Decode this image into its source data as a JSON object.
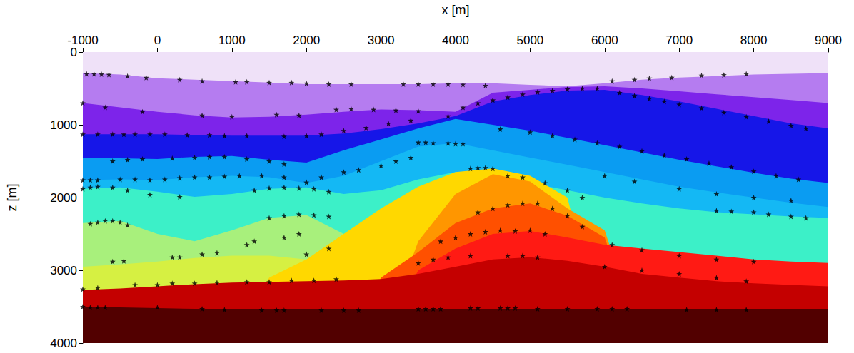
{
  "chart_data": {
    "type": "area",
    "x_label": "x [m]",
    "y_label": "z [m]",
    "xlim": [
      -1000,
      9000
    ],
    "ylim": [
      4000,
      0
    ],
    "xticks": [
      -1000,
      0,
      1000,
      2000,
      3000,
      4000,
      5000,
      6000,
      7000,
      8000,
      9000
    ],
    "yticks": [
      0,
      1000,
      2000,
      3000,
      4000
    ],
    "grid": false,
    "x": [
      -1000,
      -500,
      0,
      500,
      1000,
      1500,
      2000,
      2500,
      3000,
      3500,
      4000,
      4500,
      5000,
      5500,
      6000,
      6500,
      7000,
      7500,
      8000,
      8500,
      9000
    ],
    "series": [
      {
        "color": "#efe1f8",
        "values": [
          0,
          0,
          0,
          0,
          0,
          0,
          0,
          0,
          0,
          0,
          0,
          0,
          0,
          0,
          0,
          0,
          0,
          0,
          0,
          0,
          0
        ]
      },
      {
        "color": "#b57cf0",
        "values": [
          290,
          310,
          360,
          380,
          400,
          420,
          440,
          440,
          440,
          440,
          430,
          430,
          450,
          470,
          430,
          380,
          350,
          330,
          310,
          300,
          290
        ]
      },
      {
        "color": "#7d24ea",
        "values": [
          700,
          760,
          820,
          870,
          900,
          890,
          860,
          820,
          790,
          800,
          820,
          560,
          520,
          480,
          470,
          500,
          540,
          580,
          620,
          660,
          700
        ]
      },
      {
        "color": "#1616e8",
        "values": [
          1130,
          1130,
          1130,
          1140,
          1150,
          1150,
          1150,
          1120,
          1060,
          980,
          880,
          680,
          590,
          530,
          520,
          590,
          680,
          780,
          880,
          980,
          1050
        ]
      },
      {
        "color": "#0a9cf2",
        "values": [
          1450,
          1460,
          1470,
          1440,
          1430,
          1480,
          1520,
          1350,
          1200,
          1050,
          920,
          1000,
          1080,
          1180,
          1280,
          1380,
          1480,
          1570,
          1660,
          1740,
          1800
        ]
      },
      {
        "color": "#14b8f4",
        "values": [
          1760,
          1750,
          1760,
          1720,
          1700,
          1720,
          1800,
          1700,
          1500,
          1300,
          1250,
          1350,
          1450,
          1550,
          1650,
          1750,
          1850,
          1930,
          2000,
          2070,
          2130
        ]
      },
      {
        "color": "#3cf0c8",
        "values": [
          1880,
          1860,
          1920,
          1990,
          1950,
          1880,
          1860,
          1950,
          1900,
          1750,
          1650,
          1700,
          1800,
          1900,
          2000,
          2080,
          2150,
          2200,
          2230,
          2260,
          2280
        ]
      },
      {
        "color": "#a8f07c",
        "values": [
          2350,
          2320,
          2500,
          2600,
          2450,
          2280,
          2240,
          2500,
          2700,
          2900,
          3000,
          4000,
          4000,
          4000,
          4000,
          4000,
          4000,
          4000,
          4000,
          4000,
          4000
        ]
      },
      {
        "color": "#d6f042",
        "values": [
          2950,
          2920,
          2880,
          2830,
          2800,
          2800,
          2850,
          2950,
          3000,
          3100,
          4000,
          4000,
          4000,
          4000,
          4000,
          4000,
          4000,
          4000,
          4000,
          4000,
          4000
        ]
      },
      {
        "color": "#ffd800",
        "values": [
          4000,
          4000,
          4000,
          4000,
          4000,
          3100,
          2850,
          2500,
          2150,
          1850,
          1650,
          1600,
          1700,
          2000,
          4000,
          4000,
          4000,
          4000,
          4000,
          4000,
          4000
        ]
      },
      {
        "color": "#ff9600",
        "values": [
          4000,
          4000,
          4000,
          4000,
          4000,
          4000,
          4000,
          4000,
          4000,
          2600,
          1950,
          1680,
          1780,
          2150,
          2450,
          4000,
          4000,
          4000,
          4000,
          4000,
          4000
        ]
      },
      {
        "color": "#ff5000",
        "values": [
          4000,
          4000,
          4000,
          4000,
          4000,
          4000,
          4000,
          4000,
          3100,
          2750,
          2350,
          2150,
          2080,
          2250,
          2550,
          4000,
          4000,
          4000,
          4000,
          4000,
          4000
        ]
      },
      {
        "color": "#ff1a14",
        "values": [
          4000,
          4000,
          4000,
          4000,
          4000,
          4000,
          4000,
          4000,
          4000,
          3000,
          2700,
          2500,
          2460,
          2550,
          2650,
          2700,
          2750,
          2800,
          2850,
          2880,
          2900
        ]
      },
      {
        "color": "#c40000",
        "values": [
          3270,
          3250,
          3220,
          3190,
          3170,
          3160,
          3150,
          3140,
          3120,
          3050,
          2950,
          2850,
          2820,
          2870,
          2950,
          3050,
          3100,
          3150,
          3180,
          3200,
          3220
        ]
      },
      {
        "color": "#520000",
        "values": [
          3500,
          3510,
          3520,
          3530,
          3530,
          3540,
          3540,
          3540,
          3540,
          3530,
          3530,
          3530,
          3530,
          3530,
          3530,
          3530,
          3530,
          3530,
          3530,
          3530,
          3540
        ]
      },
      {
        "type": "scatter",
        "color": "#000000",
        "marker": "star",
        "x": [
          -950,
          -850,
          -750,
          -650,
          -400,
          -150,
          300,
          600,
          1050,
          1200,
          1500,
          1800,
          2000,
          2300,
          2600,
          3300,
          3500,
          3700,
          3900,
          4100,
          4400,
          6100,
          6400,
          6600,
          6900,
          7300,
          7600,
          7900,
          -1000,
          -700,
          -200,
          600,
          1000,
          1600,
          1900,
          2400,
          2600,
          2900,
          3200,
          3500,
          3900,
          4100,
          4300,
          4500,
          4700,
          4900,
          5100,
          5300,
          5500,
          5700,
          5900,
          6200,
          6400,
          6600,
          6800,
          7000,
          7300,
          7600,
          7900,
          8200,
          8500,
          8700,
          -1000,
          -800,
          -600,
          -450,
          -300,
          -100,
          100,
          400,
          700,
          900,
          1200,
          1700,
          2000,
          2200,
          2500,
          2800,
          3100,
          3400,
          3500,
          3600,
          3700,
          3900,
          4000,
          4100,
          4600,
          5000,
          5300,
          5600,
          5900,
          6200,
          6500,
          6800,
          7100,
          7400,
          7700,
          8000,
          8300,
          8600,
          -600,
          -400,
          -200,
          200,
          500,
          700,
          900,
          1200,
          1500,
          1700,
          -1000,
          -900,
          -800,
          -500,
          -300,
          -100,
          100,
          300,
          500,
          700,
          900,
          1100,
          1400,
          1700,
          2000,
          2200,
          2500,
          2700,
          3000,
          3200,
          3400,
          6000,
          6400,
          7000,
          7500,
          8000,
          8500,
          7500,
          7700,
          8000,
          8200,
          8500,
          8700,
          -1000,
          -900,
          -800,
          -600,
          -400,
          -100,
          300,
          1300,
          1500,
          1700,
          1900,
          2100,
          2300,
          -900,
          -800,
          -700,
          -600,
          -500,
          -400,
          1500,
          1700,
          1900,
          2100,
          2300,
          -600,
          -450,
          200,
          300,
          600,
          800,
          1200,
          1300,
          1700,
          1900,
          2000,
          2300,
          -1000,
          -800,
          -300,
          0,
          200,
          500,
          800,
          1200,
          1500,
          1800,
          2100,
          2400,
          4200,
          4300,
          4400,
          4500,
          4700,
          4900,
          5200,
          5500,
          5700,
          4300,
          4500,
          4700,
          4900,
          5100,
          5300,
          5500,
          5700,
          3800,
          4000,
          4200,
          4400,
          4600,
          4800,
          5000,
          5200,
          3500,
          3700,
          3900,
          4200,
          4700,
          4900,
          5100,
          6100,
          6500,
          7000,
          7500,
          8000,
          6000,
          6500,
          7000,
          7500,
          7900,
          -1000,
          -900,
          -800,
          -700,
          0,
          600,
          900,
          1400,
          1600,
          1700,
          2200,
          2500,
          2700,
          3500,
          3600,
          3700,
          3800,
          4200,
          4300,
          4600,
          4700,
          4800,
          5100,
          5500,
          5900,
          6100,
          6300,
          7100,
          7500,
          7900
        ],
        "values": [
          300,
          300,
          305,
          310,
          330,
          350,
          380,
          400,
          410,
          410,
          420,
          420,
          430,
          440,
          440,
          440,
          440,
          440,
          440,
          445,
          460,
          400,
          380,
          360,
          350,
          320,
          315,
          300,
          700,
          760,
          820,
          870,
          890,
          860,
          870,
          790,
          780,
          790,
          800,
          810,
          880,
          760,
          700,
          660,
          620,
          580,
          550,
          530,
          510,
          500,
          500,
          560,
          600,
          640,
          680,
          720,
          770,
          830,
          890,
          950,
          1010,
          1050,
          1130,
          1130,
          1130,
          1130,
          1130,
          1130,
          1130,
          1140,
          1140,
          1150,
          1150,
          1160,
          1150,
          1130,
          1080,
          1040,
          980,
          940,
          1240,
          1240,
          1250,
          1250,
          1260,
          1260,
          1060,
          1100,
          1150,
          1200,
          1250,
          1300,
          1360,
          1420,
          1470,
          1530,
          1580,
          1640,
          1700,
          1750,
          1500,
          1480,
          1470,
          1460,
          1450,
          1440,
          1440,
          1470,
          1500,
          1540,
          1760,
          1760,
          1760,
          1750,
          1750,
          1760,
          1750,
          1730,
          1720,
          1720,
          1710,
          1700,
          1700,
          1720,
          1790,
          1720,
          1650,
          1620,
          1560,
          1500,
          1450,
          1700,
          1780,
          1880,
          1950,
          2000,
          2040,
          2180,
          2190,
          2200,
          2230,
          2260,
          2280,
          1880,
          1860,
          1850,
          1860,
          1900,
          1960,
          1990,
          1900,
          1870,
          1860,
          1870,
          1880,
          1920,
          2360,
          2340,
          2320,
          2320,
          2340,
          2380,
          2280,
          2250,
          2230,
          2240,
          2260,
          2880,
          2870,
          2820,
          2820,
          2780,
          2760,
          2650,
          2600,
          2550,
          2500,
          2780,
          2700,
          3260,
          3240,
          3200,
          3200,
          3180,
          3180,
          3170,
          3160,
          3160,
          3140,
          3140,
          3120,
          1600,
          1590,
          1590,
          1600,
          1700,
          1720,
          1800,
          1900,
          2000,
          2200,
          2150,
          2100,
          2080,
          2080,
          2150,
          2250,
          2400,
          2600,
          2550,
          2500,
          2470,
          2450,
          2460,
          2450,
          2500,
          2900,
          2850,
          2820,
          2800,
          2800,
          2800,
          2820,
          2650,
          2720,
          2800,
          2850,
          2880,
          2950,
          3000,
          3050,
          3100,
          3150,
          3500,
          3510,
          3510,
          3510,
          3510,
          3530,
          3540,
          3550,
          3550,
          3550,
          3550,
          3550,
          3550,
          3530,
          3530,
          3530,
          3530,
          3520,
          3520,
          3520,
          3520,
          3520,
          3530,
          3530,
          3530,
          3530,
          3530,
          3540,
          3540,
          3540
        ]
      }
    ]
  }
}
